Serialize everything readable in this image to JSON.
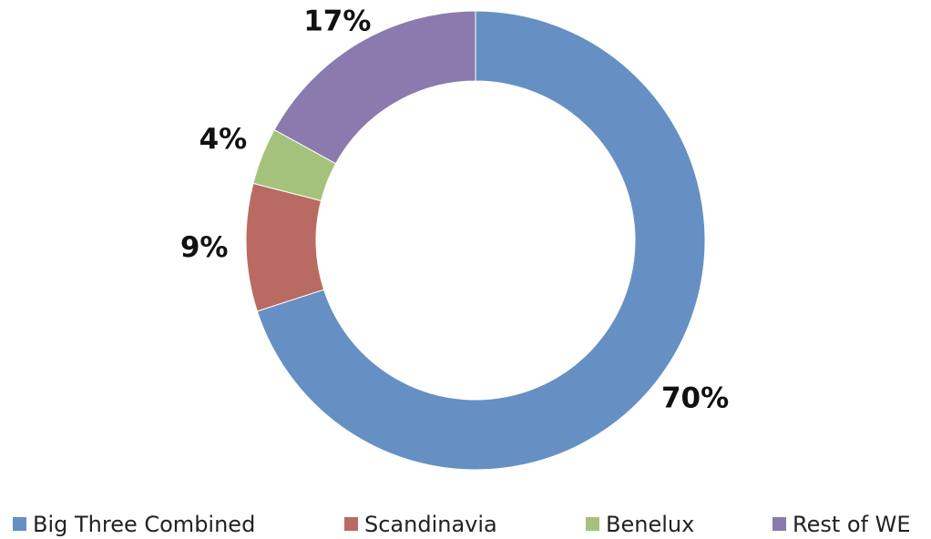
{
  "chart_data": {
    "type": "donut",
    "categories": [
      "Big Three Combined",
      "Scandinavia",
      "Benelux",
      "Rest of WE"
    ],
    "values": [
      70,
      9,
      4,
      17
    ],
    "value_labels": [
      "70%",
      "9%",
      "4%",
      "17%"
    ],
    "colors": [
      "#6690c3",
      "#b96b63",
      "#a5c27c",
      "#8a7aad"
    ],
    "legend": "bottom"
  }
}
